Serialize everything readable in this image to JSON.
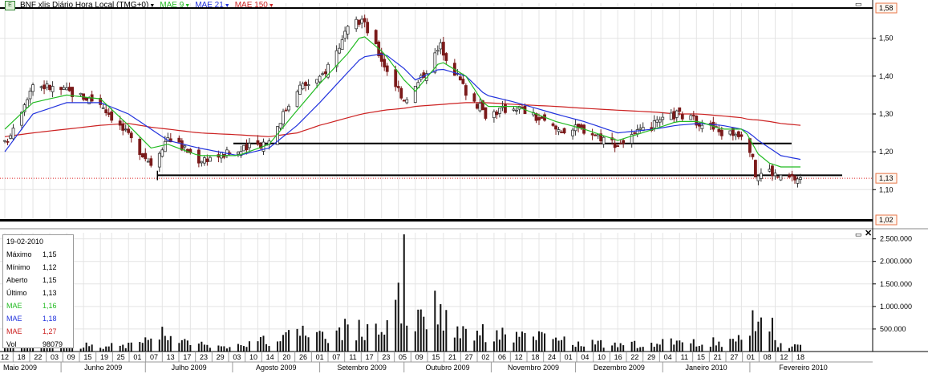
{
  "legend": {
    "symbol_text": "E",
    "title": "BNF xlis Diário Hora Local (TMG+0)",
    "mae_fast": "MAE 9",
    "mae_mid": "MAE 21",
    "mae_slow": "MAE 150",
    "colors": {
      "fast": "#22bb22",
      "mid": "#2233dd",
      "slow": "#cc2222",
      "up": "#333333",
      "down": "#7a1a1a"
    }
  },
  "info_box": {
    "date": "19-02-2010",
    "rows": [
      {
        "label": "Máximo",
        "value": "1,15",
        "color": "#000000"
      },
      {
        "label": "Mínimo",
        "value": "1,12",
        "color": "#000000"
      },
      {
        "label": "Aberto",
        "value": "1,15",
        "color": "#000000"
      },
      {
        "label": "Último",
        "value": "1,13",
        "color": "#000000"
      },
      {
        "label": "MAE",
        "value": "1,16",
        "color": "#22bb22"
      },
      {
        "label": "MAE",
        "value": "1,18",
        "color": "#2233dd"
      },
      {
        "label": "MAE",
        "value": "1,27",
        "color": "#cc2222"
      },
      {
        "label": "Vol",
        "value": "98079",
        "color": "#000000"
      }
    ]
  },
  "chart_data": {
    "type": "candlestick",
    "price_axis": {
      "ylim": [
        1.02,
        1.58
      ],
      "ticks": [
        1.1,
        1.2,
        1.3,
        1.4,
        1.5
      ],
      "tick_labels": [
        "1,10",
        "1,20",
        "1,30",
        "1,40",
        "1,50"
      ],
      "boxed_labels": [
        {
          "value": 1.58,
          "label": "1,58"
        },
        {
          "value": 1.13,
          "label": "1,13"
        },
        {
          "value": 1.02,
          "label": "1,02"
        }
      ]
    },
    "volume_axis": {
      "ylim": [
        0,
        2600000
      ],
      "ticks": [
        500000,
        1000000,
        1500000,
        2000000,
        2500000
      ],
      "tick_labels": [
        "500.000",
        "1.000.000",
        "1.500.000",
        "2.000.000",
        "2.500.000"
      ]
    },
    "horizontal_lines": [
      {
        "y": 1.58,
        "x_start": "2009-05-12",
        "x_end": "2010-02-19",
        "color": "#000000"
      },
      {
        "y": 1.02,
        "x_start": "2009-05-12",
        "x_end": "2010-02-19",
        "color": "#000000"
      },
      {
        "y": 1.13,
        "x_start": "2009-05-12",
        "x_end": "2010-02-19",
        "color": "#dd2222",
        "style": "dotted"
      },
      {
        "y": 1.222,
        "x_start": "2009-08-03",
        "x_end": "2010-02-01",
        "color": "#000000"
      },
      {
        "y": 1.138,
        "x_start": "2009-07-07",
        "x_end": "2010-02-19",
        "color": "#000000"
      }
    ],
    "x_tick_labels": [
      "12",
      "18",
      "22",
      "03",
      "09",
      "15",
      "19",
      "25",
      "01",
      "07",
      "13",
      "17",
      "23",
      "29",
      "03",
      "10",
      "14",
      "20",
      "26",
      "01",
      "07",
      "11",
      "17",
      "23",
      "05",
      "09",
      "15",
      "21",
      "27",
      "02",
      "06",
      "12",
      "18",
      "24",
      "01",
      "04",
      "10",
      "16",
      "22",
      "29",
      "04",
      "11",
      "15",
      "21",
      "27",
      "01",
      "08",
      "12",
      "18"
    ],
    "month_labels": [
      "Maio 2009",
      "Junho 2009",
      "Julho 2009",
      "Agosto 2009",
      "Setembro 2009",
      "Outubro 2009",
      "Novembro 2009",
      "Dezembro 2009",
      "Janeiro 2010",
      "Fevereiro 2010"
    ],
    "anchors": [
      {
        "d": "2009-05-12",
        "c": 1.22,
        "f": 1.26,
        "m": 1.2,
        "s": 1.24,
        "v": 100000
      },
      {
        "d": "2009-05-22",
        "c": 1.38,
        "f": 1.33,
        "m": 1.3,
        "s": 1.25,
        "v": 140000
      },
      {
        "d": "2009-06-03",
        "c": 1.36,
        "f": 1.35,
        "m": 1.33,
        "s": 1.26,
        "v": 150000
      },
      {
        "d": "2009-06-15",
        "c": 1.33,
        "f": 1.34,
        "m": 1.33,
        "s": 1.27,
        "v": 120000
      },
      {
        "d": "2009-06-25",
        "c": 1.24,
        "f": 1.27,
        "m": 1.3,
        "s": 1.275,
        "v": 160000
      },
      {
        "d": "2009-07-03",
        "c": 1.17,
        "f": 1.21,
        "m": 1.26,
        "s": 1.265,
        "v": 220000
      },
      {
        "d": "2009-07-09",
        "c": 1.24,
        "f": 1.22,
        "m": 1.23,
        "s": 1.26,
        "v": 300000
      },
      {
        "d": "2009-07-20",
        "c": 1.18,
        "f": 1.19,
        "m": 1.21,
        "s": 1.25,
        "v": 150000
      },
      {
        "d": "2009-08-03",
        "c": 1.2,
        "f": 1.19,
        "m": 1.19,
        "s": 1.245,
        "v": 150000
      },
      {
        "d": "2009-08-14",
        "c": 1.23,
        "f": 1.22,
        "m": 1.21,
        "s": 1.24,
        "v": 250000
      },
      {
        "d": "2009-08-24",
        "c": 1.37,
        "f": 1.31,
        "m": 1.27,
        "s": 1.25,
        "v": 400000
      },
      {
        "d": "2009-09-01",
        "c": 1.39,
        "f": 1.38,
        "m": 1.33,
        "s": 1.27,
        "v": 330000
      },
      {
        "d": "2009-09-11",
        "c": 1.52,
        "f": 1.46,
        "m": 1.41,
        "s": 1.29,
        "v": 500000
      },
      {
        "d": "2009-09-16",
        "c": 1.55,
        "f": 1.51,
        "m": 1.45,
        "s": 1.3,
        "v": 450000
      },
      {
        "d": "2009-09-24",
        "c": 1.43,
        "f": 1.46,
        "m": 1.46,
        "s": 1.31,
        "v": 600000
      },
      {
        "d": "2009-10-01",
        "c": 1.34,
        "f": 1.39,
        "m": 1.42,
        "s": 1.315,
        "v": 1200000
      },
      {
        "d": "2009-10-05",
        "c": 1.37,
        "f": 1.36,
        "m": 1.39,
        "s": 1.32,
        "v": 900000
      },
      {
        "d": "2009-10-14",
        "c": 1.48,
        "f": 1.44,
        "m": 1.42,
        "s": 1.325,
        "v": 700000
      },
      {
        "d": "2009-10-23",
        "c": 1.36,
        "f": 1.4,
        "m": 1.4,
        "s": 1.33,
        "v": 500000
      },
      {
        "d": "2009-10-30",
        "c": 1.3,
        "f": 1.32,
        "m": 1.35,
        "s": 1.33,
        "v": 400000
      },
      {
        "d": "2009-11-10",
        "c": 1.32,
        "f": 1.32,
        "m": 1.33,
        "s": 1.325,
        "v": 350000
      },
      {
        "d": "2009-11-24",
        "c": 1.26,
        "f": 1.28,
        "m": 1.3,
        "s": 1.32,
        "v": 250000
      },
      {
        "d": "2009-12-04",
        "c": 1.26,
        "f": 1.26,
        "m": 1.28,
        "s": 1.315,
        "v": 180000
      },
      {
        "d": "2009-12-16",
        "c": 1.22,
        "f": 1.23,
        "m": 1.25,
        "s": 1.31,
        "v": 150000
      },
      {
        "d": "2009-12-29",
        "c": 1.27,
        "f": 1.26,
        "m": 1.26,
        "s": 1.305,
        "v": 170000
      },
      {
        "d": "2010-01-06",
        "c": 1.3,
        "f": 1.28,
        "m": 1.27,
        "s": 1.3,
        "v": 200000
      },
      {
        "d": "2010-01-14",
        "c": 1.28,
        "f": 1.28,
        "m": 1.275,
        "s": 1.3,
        "v": 220000
      },
      {
        "d": "2010-01-22",
        "c": 1.25,
        "f": 1.26,
        "m": 1.27,
        "s": 1.295,
        "v": 200000
      },
      {
        "d": "2010-01-29",
        "c": 1.25,
        "f": 1.26,
        "m": 1.26,
        "s": 1.29,
        "v": 250000
      },
      {
        "d": "2010-02-01",
        "c": 1.21,
        "f": 1.24,
        "m": 1.25,
        "s": 1.285,
        "v": 500000
      },
      {
        "d": "2010-02-03",
        "c": 1.14,
        "f": 1.2,
        "m": 1.235,
        "s": 1.285,
        "v": 750000
      },
      {
        "d": "2010-02-08",
        "c": 1.15,
        "f": 1.17,
        "m": 1.21,
        "s": 1.28,
        "v": 400000
      },
      {
        "d": "2010-02-12",
        "c": 1.13,
        "f": 1.16,
        "m": 1.19,
        "s": 1.275,
        "v": 150000
      },
      {
        "d": "2010-02-19",
        "c": 1.13,
        "f": 1.16,
        "m": 1.18,
        "s": 1.27,
        "v": 98079
      }
    ],
    "spikes": [
      {
        "d": "2009-07-07",
        "v": 550000
      },
      {
        "d": "2009-09-11",
        "v": 600000
      },
      {
        "d": "2009-10-01",
        "v": 2600000
      },
      {
        "d": "2009-10-12",
        "v": 1350000
      },
      {
        "d": "2010-02-09",
        "v": 750000
      }
    ]
  }
}
